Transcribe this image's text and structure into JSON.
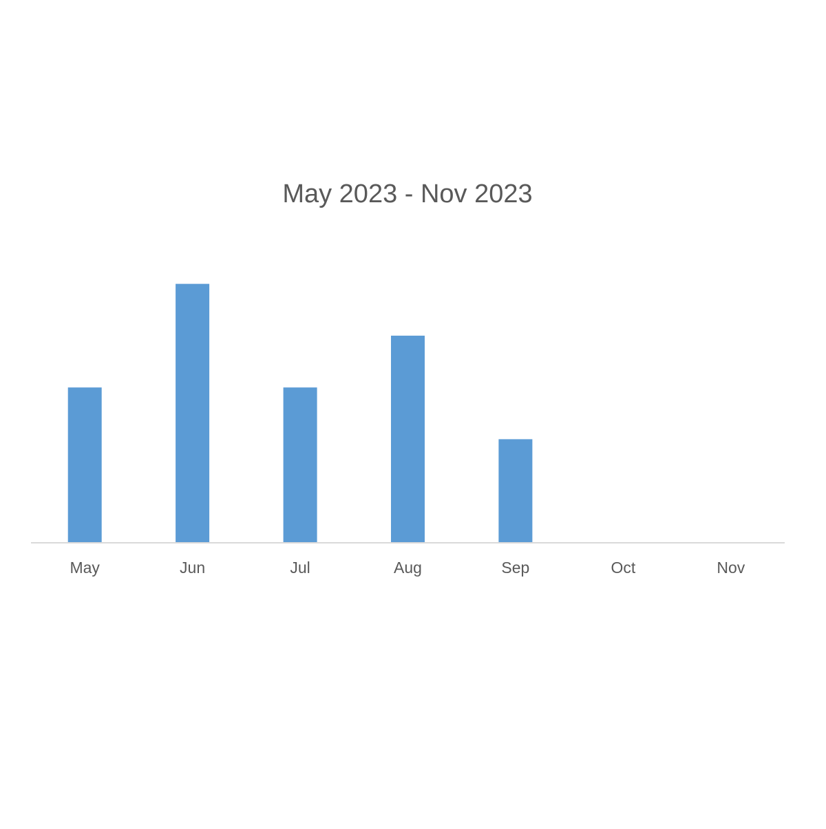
{
  "chart_data": {
    "type": "bar",
    "title": "May 2023 - Nov 2023",
    "xlabel": "",
    "ylabel": "",
    "categories": [
      "May",
      "Jun",
      "Jul",
      "Aug",
      "Sep",
      "Oct",
      "Nov"
    ],
    "values": [
      3,
      5,
      3,
      4,
      2,
      0,
      0
    ],
    "ylim": [
      0,
      5.3
    ],
    "grid": false,
    "legend": "none",
    "colors": {
      "bar": "#5b9bd5",
      "axis": "#d9d9d9",
      "text": "#595959"
    }
  }
}
